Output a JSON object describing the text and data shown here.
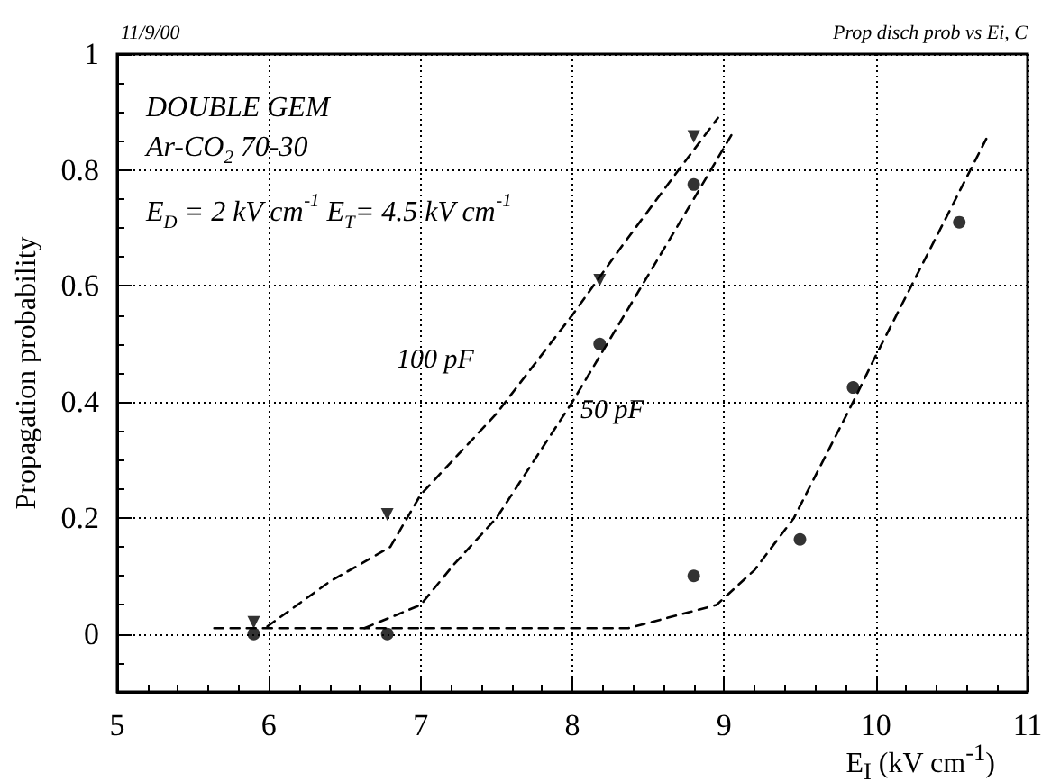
{
  "chart_data": {
    "type": "scatter",
    "xlabel": "E$_{I}$ (kV cm$^{-1}$)",
    "ylabel": "Propagation probability",
    "xlim": [
      5,
      11
    ],
    "xticks": [
      5,
      6,
      7,
      8,
      9,
      10,
      11
    ],
    "ylim": [
      -0.1,
      1
    ],
    "yticks": [
      0,
      0.2,
      0.4,
      0.6,
      0.8,
      1
    ],
    "grid": true,
    "series": [
      {
        "marker": "triangle",
        "color": "#000000",
        "x": [
          5.9,
          6.78,
          8.18,
          8.8
        ],
        "values": [
          0.02,
          0.206,
          0.61,
          0.858
        ]
      },
      {
        "marker": "circle",
        "color": "#000000",
        "x": [
          5.9,
          6.78,
          8.18,
          8.8
        ],
        "values": [
          0,
          0,
          0.5,
          0.775
        ]
      },
      {
        "marker": "circle",
        "color": "#000000",
        "x": [
          8.8,
          9.5,
          9.85,
          10.55
        ],
        "values": [
          0.1,
          0.163,
          0.425,
          0.71
        ]
      },
      {
        "type": "line",
        "marker": "none",
        "line_style": "dashed",
        "color": "#000000",
        "x": [
          5.99,
          6.4,
          6.8,
          7.0,
          7.5,
          8.0,
          8.33,
          8.7,
          8.96
        ],
        "values": [
          0.013,
          0.09,
          0.15,
          0.24,
          0.38,
          0.55,
          0.67,
          0.8,
          0.89
        ]
      },
      {
        "type": "line",
        "marker": "none",
        "line_style": "dashed",
        "color": "#000000",
        "x": [
          6.63,
          7.0,
          7.22,
          7.5,
          8.0,
          8.48,
          8.8,
          9.07
        ],
        "values": [
          0.01,
          0.05,
          0.12,
          0.2,
          0.4,
          0.61,
          0.75,
          0.87
        ]
      },
      {
        "type": "line",
        "marker": "none",
        "line_style": "dashed",
        "color": "#000000",
        "x": [
          5.64,
          8.37,
          8.95,
          9.2,
          9.46,
          9.85,
          10.0,
          10.37,
          10.74
        ],
        "values": [
          0.01,
          0.01,
          0.05,
          0.11,
          0.2,
          0.4,
          0.48,
          0.67,
          0.86
        ]
      }
    ],
    "annotations": [
      "11/9/00",
      "Prop disch prob vs Ei, C",
      "DOUBLE GEM",
      "Ar-CO$_{2}$ 70-30",
      "E$_{D}$ = 2 kV cm$^{-1}$ E$_{T}$= 4.5 kV cm$^{-1}$",
      "100 pF",
      "50 pF"
    ]
  }
}
